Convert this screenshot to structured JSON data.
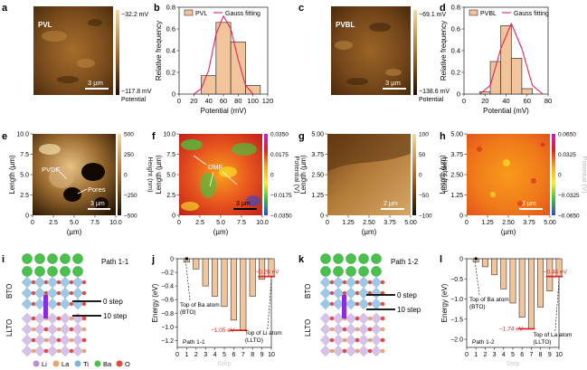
{
  "panels": {
    "a": {
      "letter": "a",
      "label": "PVL",
      "scale_bar": "3 µm",
      "colorbar": {
        "max": "−32.2 mV",
        "min": "−117.8 mV",
        "title": "Potential"
      }
    },
    "b": {
      "letter": "b",
      "legend": {
        "bars": "PVL",
        "fit": "Gauss fitting"
      },
      "xlabel": "Potential (mV)",
      "ylabel": "Relative frequency",
      "xticks": [
        "0",
        "20",
        "40",
        "60",
        "80",
        "100",
        "120"
      ],
      "yticks": [
        "0",
        "0.2",
        "0.4",
        "0.6",
        "0.8"
      ]
    },
    "c": {
      "letter": "c",
      "label": "PVBL",
      "scale_bar": "3 µm",
      "colorbar": {
        "max": "−69.1 mV",
        "min": "−138.6 mV",
        "title": "Potential"
      }
    },
    "d": {
      "letter": "d",
      "legend": {
        "bars": "PVBL",
        "fit": "Gauss fitting"
      },
      "xlabel": "Potential (mV)",
      "ylabel": "Relative frequency",
      "xticks": [
        "0",
        "20",
        "40",
        "60",
        "80"
      ],
      "yticks": [
        "0",
        "0.2",
        "0.4",
        "0.6",
        "0.8"
      ]
    },
    "e": {
      "letter": "e",
      "xlabel": "(µm)",
      "ylabel": "Length (µm)",
      "xticks": [
        "0",
        "2.5",
        "5.0",
        "7.5",
        "10.0"
      ],
      "yticks": [
        "0",
        "2.5",
        "5.0",
        "7.5",
        "10.0"
      ],
      "annotations": [
        "PVDF",
        "Pores"
      ],
      "scale_bar": "3 µm",
      "colorbar": {
        "ticks": [
          "500",
          "250",
          "0",
          "−250",
          "−500"
        ],
        "title": "Height (nm)"
      }
    },
    "f": {
      "letter": "f",
      "xlabel": "(µm)",
      "ylabel": "Length (µm)",
      "xticks": [
        "0",
        "2.5",
        "5.0",
        "7.5",
        "10.0"
      ],
      "yticks": [
        "0",
        "2.5",
        "5.0",
        "7.5",
        "10.0"
      ],
      "annotations": [
        "DMF"
      ],
      "scale_bar": "3 µm",
      "colorbar": {
        "ticks": [
          "0.0350",
          "0.0175",
          "0",
          "−0.0175",
          "−0.0350"
        ],
        "title": "Potential (V)"
      }
    },
    "g": {
      "letter": "g",
      "xlabel": "(µm)",
      "ylabel": "Length (µm)",
      "xticks": [
        "0",
        "1.25",
        "2.50",
        "3.75",
        "5.00"
      ],
      "yticks": [
        "0",
        "1.25",
        "2.50",
        "3.75",
        "5.00"
      ],
      "scale_bar": "2 µm",
      "colorbar": {
        "ticks": [
          "100",
          "50",
          "0",
          "−50",
          "−100"
        ],
        "title": "Height (nm)"
      }
    },
    "h": {
      "letter": "h",
      "xlabel": "(µm)",
      "ylabel": "Length (µm)",
      "xticks": [
        "0",
        "1.25",
        "2.50",
        "3.75",
        "5.00"
      ],
      "yticks": [
        "0",
        "1.25",
        "2.50",
        "3.75",
        "5.00"
      ],
      "scale_bar": "2 µm",
      "colorbar": {
        "ticks": [
          "0.0650",
          "0.0325",
          "0",
          "−0.0325",
          "−0.0650"
        ],
        "title": "Potential (V)"
      }
    },
    "i": {
      "letter": "i",
      "path": "Path 1-1",
      "top_label": "BTO",
      "bottom_label": "LLTO",
      "steps": [
        "0 step",
        "10 step"
      ],
      "legend": [
        "Li",
        "La",
        "Ti",
        "Ba",
        "O"
      ]
    },
    "j": {
      "letter": "j",
      "ylabel": "Energy (eV)",
      "xlabel": "Step",
      "path": "Path 1-1",
      "annotations": [
        "−0.26 eV",
        "Top of Ba atom (BTO)",
        "−1.05 eV",
        "Top of Li atom (LLTO)"
      ],
      "xticks": [
        "0",
        "1",
        "2",
        "3",
        "4",
        "5",
        "6",
        "7",
        "8",
        "9",
        "10"
      ],
      "yticks": [
        "0",
        "−0.2",
        "−0.4",
        "−0.6",
        "−0.8",
        "−1.0",
        "−1.2"
      ]
    },
    "k": {
      "letter": "k",
      "path": "Path 1-2",
      "top_label": "BTO",
      "bottom_label": "LLTO",
      "steps": [
        "0 step",
        "10 step"
      ]
    },
    "l": {
      "letter": "l",
      "ylabel": "Energy (eV)",
      "xlabel": "Step",
      "path": "Path 1-2",
      "annotations": [
        "−0.44 eV",
        "Top of Ba atom (BTO)",
        "−1.74 eV",
        "Top of La atom (LLTO)"
      ],
      "xticks": [
        "0",
        "1",
        "2",
        "3",
        "4",
        "5",
        "6",
        "7",
        "8",
        "9",
        "10"
      ],
      "yticks": [
        "0",
        "−0.5",
        "−1.0",
        "−1.5",
        "−2.0"
      ]
    }
  },
  "colors": {
    "bar_fill": "#f2c49b",
    "bar_edge": "#333333",
    "fit_line": "#e0245e",
    "afm_dark": "#2a1805",
    "afm_light": "#f2d9a0",
    "li": "#b68fd6",
    "la": "#e9a46b",
    "ti": "#7fb6de",
    "ba": "#49c24b",
    "o": "#e34a3a"
  },
  "chart_data": [
    {
      "type": "bar",
      "title": "",
      "x": [
        40,
        60,
        80,
        100
      ],
      "series": [
        {
          "name": "PVL",
          "values": [
            0.17,
            0.66,
            0.48,
            0.08
          ]
        }
      ],
      "fit": {
        "name": "Gauss fitting",
        "x": [
          20,
          30,
          40,
          50,
          60,
          70,
          80,
          90,
          100
        ],
        "values": [
          0.0,
          0.05,
          0.22,
          0.55,
          0.72,
          0.6,
          0.32,
          0.08,
          0.0
        ]
      },
      "xlabel": "Potential (mV)",
      "ylabel": "Relative frequency",
      "xlim": [
        0,
        120
      ],
      "ylim": [
        0,
        0.8
      ]
    },
    {
      "type": "bar",
      "title": "",
      "x": [
        20,
        30,
        40,
        50,
        60
      ],
      "series": [
        {
          "name": "PVBL",
          "values": [
            0.02,
            0.3,
            0.63,
            0.33,
            0.05
          ]
        }
      ],
      "fit": {
        "name": "Gauss fitting",
        "x": [
          15,
          25,
          35,
          45,
          55,
          65,
          75
        ],
        "values": [
          0.0,
          0.08,
          0.42,
          0.65,
          0.42,
          0.08,
          0.0
        ]
      },
      "xlabel": "Potential (mV)",
      "ylabel": "Relative frequency",
      "xlim": [
        0,
        80
      ],
      "ylim": [
        0,
        0.8
      ]
    },
    {
      "type": "bar",
      "title": "",
      "x": [
        1,
        2,
        3,
        4,
        5,
        6,
        7,
        8,
        9,
        10
      ],
      "series": [
        {
          "name": "Path 1-1",
          "values": [
            -0.05,
            -0.15,
            -0.4,
            -0.55,
            -0.7,
            -0.9,
            -1.05,
            -0.55,
            -0.3,
            -0.26
          ]
        }
      ],
      "xlabel": "Step",
      "ylabel": "Energy (eV)",
      "xlim": [
        0,
        10
      ],
      "ylim": [
        -1.3,
        0
      ]
    },
    {
      "type": "bar",
      "title": "",
      "x": [
        1,
        2,
        3,
        4,
        5,
        6,
        7,
        8,
        9,
        10
      ],
      "series": [
        {
          "name": "Path 1-2",
          "values": [
            -0.08,
            -0.2,
            -0.4,
            -0.75,
            -1.1,
            -1.45,
            -1.74,
            -1.2,
            -0.8,
            -0.44
          ]
        }
      ],
      "xlabel": "Step",
      "ylabel": "Energy (eV)",
      "xlim": [
        0,
        10
      ],
      "ylim": [
        -2.2,
        0
      ]
    }
  ]
}
